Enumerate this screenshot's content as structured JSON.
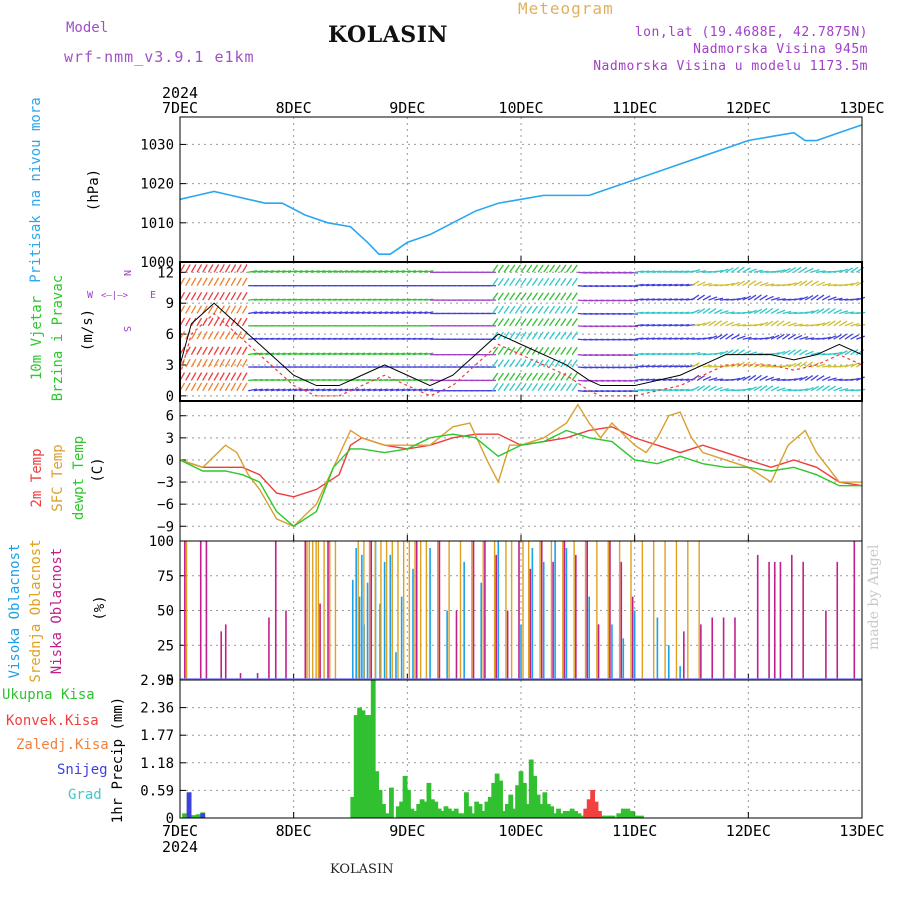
{
  "header": {
    "model_label": "Model",
    "model_version": "wrf-nmm_v3.9.1  e1km",
    "station": "KOLASIN",
    "chart_title": "Meteogram",
    "coords": "lon,lat (19.4688E, 42.7875N)",
    "elevation": "Nadmorska Visina 945m",
    "model_elevation": "Nadmorska Visina u modelu 1173.5m",
    "year_top": "2024",
    "year_bottom": "2024"
  },
  "footer": {
    "station": "KOLASIN",
    "credit": "made by Angel"
  },
  "colors": {
    "pressure": "#2aa7f0",
    "temp2m": "#ee3c3c",
    "sfc": "#d9a030",
    "dew": "#2cc82c",
    "high_cloud": "#1ca0e8",
    "mid_cloud": "#e0a020",
    "low_cloud": "#c0208c",
    "total_precip": "#30c030",
    "conv_precip": "#f04040",
    "frozen": "#f08040",
    "snow": "#4040e0",
    "hail": "#40c8c8"
  },
  "chart_data": [
    {
      "type": "line",
      "panel": "pressure",
      "ylabel": "Pritisak na nivou mora",
      "unit": "(hPa)",
      "x_labels": [
        "7DEC",
        "8DEC",
        "9DEC",
        "10DEC",
        "11DEC",
        "12DEC",
        "13DEC"
      ],
      "xlim": [
        0,
        6
      ],
      "ylim": [
        1000,
        1037
      ],
      "yticks": [
        1000,
        1010,
        1020,
        1030
      ],
      "grid": true,
      "series": [
        {
          "x": [
            0,
            0.15,
            0.3,
            0.45,
            0.6,
            0.75,
            0.9,
            1.1,
            1.3,
            1.5,
            1.65,
            1.75,
            1.85,
            2.0,
            2.2,
            2.4,
            2.6,
            2.8,
            3.0,
            3.2,
            3.4,
            3.6,
            3.8,
            4.0,
            4.2,
            4.4,
            4.6,
            4.8,
            5.0,
            5.2,
            5.4,
            5.5,
            5.6,
            5.8,
            6.0
          ],
          "values": [
            1016,
            1017,
            1018,
            1017,
            1016,
            1015,
            1015,
            1012,
            1010,
            1009,
            1005,
            1002,
            1002,
            1005,
            1007,
            1010,
            1013,
            1015,
            1016,
            1017,
            1017,
            1017,
            1019,
            1021,
            1023,
            1025,
            1027,
            1029,
            1031,
            1032,
            1033,
            1031,
            1031,
            1033,
            1035
          ]
        }
      ]
    },
    {
      "type": "line",
      "panel": "wind",
      "ylabel": [
        "10m Vjetar",
        "Brzina i Pravac"
      ],
      "unit": "(m/s)",
      "compass": [
        "N",
        "W",
        "E",
        "S"
      ],
      "x_labels": [
        "7DEC",
        "8DEC",
        "9DEC",
        "10DEC",
        "11DEC",
        "12DEC",
        "13DEC"
      ],
      "xlim": [
        0,
        6
      ],
      "ylim": [
        -0.5,
        13
      ],
      "yticks": [
        0,
        3,
        6,
        9,
        12
      ],
      "grid": true,
      "series": [
        {
          "name": "speed",
          "x": [
            0,
            0.1,
            0.2,
            0.3,
            0.4,
            0.5,
            0.6,
            0.8,
            1.0,
            1.2,
            1.4,
            1.6,
            1.8,
            2.0,
            2.2,
            2.4,
            2.6,
            2.8,
            3.0,
            3.2,
            3.4,
            3.6,
            3.7,
            3.8,
            4.0,
            4.2,
            4.4,
            4.6,
            4.8,
            5.0,
            5.2,
            5.4,
            5.6,
            5.8,
            6.0
          ],
          "values": [
            3,
            7,
            8,
            9,
            8,
            7,
            6,
            4,
            2,
            1,
            1,
            2,
            3,
            2,
            1,
            2,
            4,
            6,
            5,
            4,
            3,
            1.5,
            1,
            1,
            1,
            1.5,
            2,
            3,
            4,
            4,
            4,
            3.5,
            4,
            5,
            4
          ]
        }
      ]
    },
    {
      "type": "line",
      "panel": "temperature",
      "ylabel": [
        "2m Temp",
        "SFC Temp",
        "dewpt Temp"
      ],
      "unit": "(C)",
      "x_labels": [
        "7DEC",
        "8DEC",
        "9DEC",
        "10DEC",
        "11DEC",
        "12DEC",
        "13DEC"
      ],
      "xlim": [
        0,
        6
      ],
      "ylim": [
        -11,
        8
      ],
      "yticks": [
        -9,
        -6,
        -3,
        0,
        3,
        6
      ],
      "grid": true,
      "series": [
        {
          "name": "2m Temp",
          "x": [
            0,
            0.2,
            0.4,
            0.55,
            0.7,
            0.85,
            1.0,
            1.2,
            1.4,
            1.5,
            1.6,
            1.8,
            2.0,
            2.2,
            2.4,
            2.6,
            2.8,
            3.0,
            3.2,
            3.4,
            3.6,
            3.8,
            4.0,
            4.2,
            4.4,
            4.6,
            4.8,
            5.0,
            5.2,
            5.4,
            5.6,
            5.8,
            6.0
          ],
          "values": [
            0,
            -1,
            -1,
            -1,
            -2,
            -4.5,
            -5,
            -4,
            -2,
            2,
            3,
            2,
            1.5,
            2,
            3,
            3.5,
            3.5,
            2,
            2.5,
            3,
            4,
            4.5,
            3,
            2,
            1,
            2,
            1,
            0,
            -1,
            0,
            -1,
            -3,
            -3.5
          ]
        },
        {
          "name": "SFC Temp",
          "x": [
            0,
            0.2,
            0.4,
            0.5,
            0.6,
            0.7,
            0.85,
            1.0,
            1.2,
            1.35,
            1.5,
            1.6,
            1.8,
            2.0,
            2.2,
            2.4,
            2.55,
            2.7,
            2.8,
            2.9,
            3.0,
            3.2,
            3.4,
            3.5,
            3.6,
            3.7,
            3.8,
            4.0,
            4.1,
            4.2,
            4.3,
            4.4,
            4.5,
            4.6,
            4.8,
            5.0,
            5.2,
            5.35,
            5.5,
            5.6,
            5.8,
            6.0
          ],
          "values": [
            0,
            -1,
            2,
            1,
            -2,
            -4,
            -8,
            -9,
            -6,
            -1,
            4,
            3,
            2,
            2,
            2,
            4.5,
            5,
            0,
            -3,
            2,
            2,
            3,
            5,
            7.5,
            5,
            3,
            5,
            2,
            1,
            3,
            6,
            6.5,
            3,
            1,
            0,
            -1,
            -3,
            2,
            4,
            1,
            -3,
            -3
          ]
        },
        {
          "name": "dewpt Temp",
          "x": [
            0,
            0.2,
            0.4,
            0.55,
            0.7,
            0.85,
            1.0,
            1.1,
            1.2,
            1.35,
            1.5,
            1.6,
            1.8,
            2.0,
            2.2,
            2.4,
            2.6,
            2.8,
            3.0,
            3.2,
            3.4,
            3.6,
            3.8,
            4.0,
            4.2,
            4.4,
            4.6,
            4.8,
            5.0,
            5.2,
            5.4,
            5.6,
            5.8,
            6.0
          ],
          "values": [
            0,
            -1.5,
            -1.5,
            -2,
            -3,
            -7,
            -9,
            -8,
            -7,
            -1,
            1.5,
            1.5,
            1,
            1.5,
            3,
            3.5,
            3,
            0.5,
            2,
            2.5,
            4,
            3,
            2.5,
            0,
            -0.5,
            0.5,
            -0.5,
            -1,
            -1,
            -1.5,
            -1,
            -2,
            -3.5,
            -3.5
          ]
        }
      ]
    },
    {
      "type": "bar",
      "panel": "cloud",
      "ylabel": [
        "Visoka Oblacnost",
        "Srednja Oblacnost",
        "Niska Oblacnost"
      ],
      "unit": "(%)",
      "x_labels": [
        "7DEC",
        "8DEC",
        "9DEC",
        "10DEC",
        "11DEC",
        "12DEC",
        "13DEC"
      ],
      "xlim": [
        0,
        6
      ],
      "ylim": [
        0,
        100
      ],
      "yticks": [
        0,
        25,
        50,
        75,
        100
      ],
      "grid": true,
      "series": [
        {
          "name": "Visoka Oblacnost",
          "x": [
            1.52,
            1.55,
            1.58,
            1.6,
            1.62,
            1.65,
            1.72,
            1.76,
            1.8,
            1.85,
            1.9,
            1.95,
            2.05,
            2.2,
            2.35,
            2.5,
            2.65,
            2.8,
            3.0,
            3.1,
            3.2,
            3.3,
            3.4,
            3.6,
            3.8,
            3.9,
            4.0,
            4.2,
            4.3,
            4.4
          ],
          "values": [
            72,
            95,
            60,
            90,
            40,
            70,
            100,
            55,
            85,
            90,
            20,
            60,
            80,
            95,
            50,
            85,
            70,
            100,
            40,
            95,
            85,
            100,
            95,
            60,
            40,
            30,
            50,
            45,
            25,
            10
          ]
        },
        {
          "name": "Srednja Oblacnost",
          "x": [
            0.04,
            1.1,
            1.12,
            1.15,
            1.18,
            1.2,
            1.25,
            1.3,
            1.35,
            1.55,
            1.6,
            1.65,
            1.7,
            1.75,
            1.8,
            1.85,
            1.9,
            1.95,
            2.0,
            2.05,
            2.1,
            2.15,
            2.25,
            2.35,
            2.45,
            2.55,
            2.65,
            2.75,
            2.85,
            2.9,
            3.0,
            3.05,
            3.15,
            3.25,
            3.35,
            3.45,
            3.55,
            3.65,
            3.75,
            3.85,
            3.95,
            4.05,
            4.15,
            4.25,
            4.35,
            4.45,
            4.55
          ],
          "values": [
            100,
            100,
            100,
            100,
            100,
            100,
            100,
            100,
            100,
            100,
            100,
            100,
            100,
            100,
            100,
            100,
            100,
            100,
            100,
            100,
            100,
            100,
            100,
            100,
            100,
            100,
            100,
            100,
            100,
            100,
            100,
            100,
            100,
            100,
            100,
            100,
            100,
            100,
            100,
            100,
            100,
            100,
            100,
            100,
            100,
            100,
            100
          ]
        },
        {
          "name": "Niska Oblacnost",
          "x": [
            0.06,
            0.2,
            0.25,
            0.38,
            0.42,
            0.55,
            0.7,
            0.8,
            0.86,
            0.95,
            1.12,
            1.25,
            1.32,
            1.7,
            2.1,
            2.3,
            2.45,
            2.6,
            2.7,
            2.8,
            2.9,
            3.0,
            3.1,
            3.2,
            3.3,
            3.4,
            3.5,
            3.6,
            3.7,
            3.8,
            3.9,
            4.0,
            4.45,
            4.6,
            4.7,
            4.8,
            4.9,
            5.1,
            5.2,
            5.25,
            5.3,
            5.4,
            5.5,
            5.7,
            5.8,
            5.95
          ],
          "values": [
            100,
            100,
            100,
            35,
            40,
            5,
            5,
            45,
            100,
            50,
            100,
            55,
            100,
            100,
            100,
            100,
            50,
            100,
            100,
            90,
            50,
            100,
            80,
            100,
            85,
            100,
            90,
            100,
            40,
            100,
            85,
            60,
            35,
            40,
            45,
            45,
            45,
            90,
            85,
            85,
            85,
            90,
            85,
            50,
            85,
            100
          ]
        }
      ]
    },
    {
      "type": "bar",
      "panel": "precip",
      "ylabel": "1hr Precip",
      "unit": "(mm)",
      "legend": [
        "Ukupna Kisa",
        "Konvek.Kisa",
        "Zaledj.Kisa",
        "Snijeg",
        "Grad"
      ],
      "x_labels": [
        "7DEC",
        "8DEC",
        "9DEC",
        "10DEC",
        "11DEC",
        "12DEC",
        "13DEC"
      ],
      "xlim": [
        0,
        6
      ],
      "ylim": [
        0,
        2.95
      ],
      "yticks": [
        0,
        0.59,
        1.18,
        1.77,
        2.36,
        2.95
      ],
      "grid": true,
      "series": [
        {
          "name": "Ukupna Kisa",
          "x": [
            0.04,
            0.08,
            0.12,
            0.16,
            0.2,
            1.52,
            1.55,
            1.58,
            1.61,
            1.64,
            1.67,
            1.7,
            1.73,
            1.76,
            1.79,
            1.82,
            1.86,
            1.92,
            1.95,
            1.98,
            2.01,
            2.04,
            2.07,
            2.1,
            2.13,
            2.16,
            2.19,
            2.22,
            2.25,
            2.28,
            2.31,
            2.34,
            2.37,
            2.4,
            2.43,
            2.46,
            2.49,
            2.52,
            2.55,
            2.58,
            2.61,
            2.64,
            2.67,
            2.7,
            2.73,
            2.76,
            2.79,
            2.82,
            2.85,
            2.88,
            2.91,
            2.94,
            2.97,
            3.0,
            3.03,
            3.06,
            3.09,
            3.12,
            3.15,
            3.18,
            3.21,
            3.24,
            3.27,
            3.3,
            3.33,
            3.36,
            3.39,
            3.42,
            3.45,
            3.48,
            3.51,
            3.54,
            3.57,
            3.6,
            3.63,
            3.66,
            3.69,
            3.72,
            3.75,
            3.78,
            3.81,
            3.86,
            3.9,
            3.94,
            3.98,
            4.02,
            4.06
          ],
          "values": [
            0.1,
            0.5,
            0.06,
            0.08,
            0.12,
            0.45,
            2.2,
            2.36,
            2.3,
            2.2,
            2.2,
            2.95,
            1.0,
            0.6,
            0.3,
            0.1,
            0.65,
            0.25,
            0.35,
            0.9,
            0.6,
            0.2,
            0.15,
            0.3,
            0.4,
            0.35,
            0.75,
            0.4,
            0.35,
            0.2,
            0.15,
            0.25,
            0.2,
            0.15,
            0.2,
            0.1,
            0.1,
            0.55,
            0.25,
            0.1,
            0.35,
            0.3,
            0.15,
            0.35,
            0.45,
            0.75,
            0.95,
            0.8,
            0.15,
            0.3,
            0.5,
            0.2,
            0.7,
            1.0,
            0.75,
            0.3,
            1.25,
            0.9,
            0.5,
            0.3,
            0.55,
            0.3,
            0.25,
            0.1,
            0.2,
            0.1,
            0.15,
            0.15,
            0.2,
            0.15,
            0.1,
            0.05,
            0.1,
            0.05,
            0.1,
            0.05,
            0.05,
            0.05,
            0.05,
            0.05,
            0.05,
            0.1,
            0.2,
            0.2,
            0.15,
            0.05,
            0.05
          ]
        },
        {
          "name": "Konvek.Kisa",
          "x": [
            3.57,
            3.6,
            3.63,
            3.66,
            3.69
          ],
          "values": [
            0.2,
            0.4,
            0.6,
            0.35,
            0.15
          ]
        },
        {
          "name": "Snijeg",
          "x": [
            0.08,
            0.2
          ],
          "values": [
            0.55,
            0.1
          ]
        }
      ]
    }
  ]
}
